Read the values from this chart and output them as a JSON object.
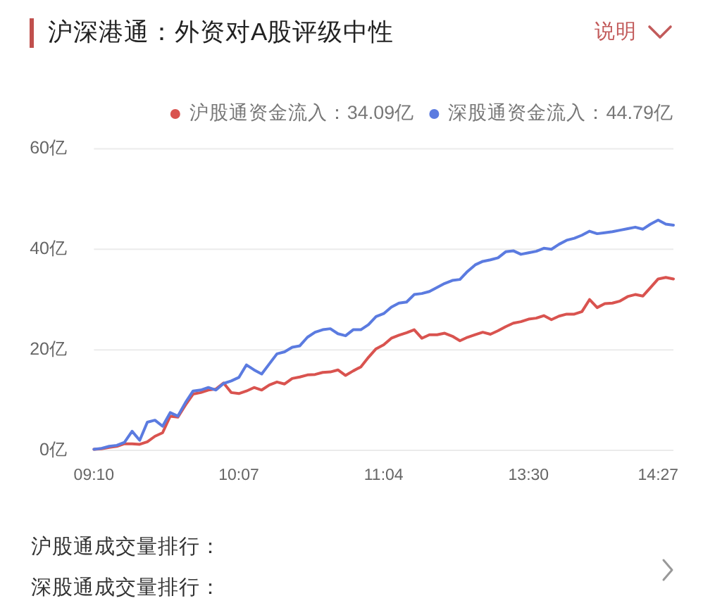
{
  "chart_data": {
    "type": "line",
    "title": "沪深港通：外资对A股评级中性",
    "annotations": [
      "说明",
      "沪股通成交量排行：",
      "深股通成交量排行："
    ],
    "categories": [
      "09:10",
      null,
      null,
      null,
      null,
      null,
      null,
      null,
      null,
      null,
      null,
      null,
      null,
      null,
      null,
      null,
      null,
      null,
      null,
      "10:07",
      null,
      null,
      null,
      null,
      null,
      null,
      null,
      null,
      null,
      null,
      null,
      null,
      null,
      null,
      null,
      null,
      null,
      null,
      "11:04",
      null,
      null,
      null,
      null,
      null,
      null,
      null,
      null,
      null,
      null,
      null,
      null,
      null,
      null,
      null,
      null,
      null,
      null,
      "13:30",
      null,
      null,
      null,
      null,
      null,
      null,
      null,
      null,
      null,
      null,
      null,
      null,
      null,
      null,
      null,
      null,
      "14:27",
      null,
      null
    ],
    "series": [
      {
        "name": "沪股通资金流入：34.09亿",
        "color": "#d9534f",
        "values": [
          0.2,
          0.3,
          0.6,
          0.8,
          1.3,
          1.3,
          1.2,
          1.7,
          2.8,
          3.5,
          6.8,
          6.6,
          9.0,
          11.2,
          11.5,
          12.0,
          12.2,
          13.4,
          11.5,
          11.3,
          11.8,
          12.5,
          12.0,
          13.0,
          13.6,
          13.2,
          14.3,
          14.6,
          15.0,
          15.1,
          15.5,
          15.6,
          16.0,
          14.9,
          15.8,
          16.6,
          18.5,
          20.2,
          21.0,
          22.3,
          22.9,
          23.4,
          24.0,
          22.3,
          23.0,
          23.0,
          23.3,
          22.7,
          21.8,
          22.5,
          23.0,
          23.5,
          23.1,
          23.8,
          24.6,
          25.3,
          25.6,
          26.1,
          26.3,
          26.8,
          26.0,
          26.7,
          27.1,
          27.1,
          27.6,
          30.0,
          28.4,
          29.2,
          29.3,
          29.7,
          30.6,
          31.0,
          30.7,
          32.4,
          34.1,
          34.4,
          34.1
        ]
      },
      {
        "name": "深股通资金流入：44.79亿",
        "color": "#5b7be0",
        "values": [
          0.2,
          0.4,
          0.8,
          1.0,
          1.6,
          3.8,
          2.0,
          5.6,
          6.0,
          4.8,
          7.5,
          6.8,
          9.5,
          11.8,
          12.0,
          12.5,
          12.0,
          13.3,
          13.8,
          14.5,
          17.0,
          16.0,
          15.2,
          17.2,
          19.2,
          19.6,
          20.5,
          20.8,
          22.5,
          23.5,
          24.0,
          24.2,
          23.2,
          22.8,
          24.0,
          24.0,
          25.0,
          26.6,
          27.2,
          28.5,
          29.3,
          29.5,
          31.0,
          31.2,
          31.6,
          32.4,
          33.2,
          33.8,
          34.0,
          35.6,
          36.9,
          37.6,
          37.9,
          38.3,
          39.5,
          39.7,
          39.0,
          39.3,
          39.6,
          40.2,
          40.0,
          41.0,
          41.8,
          42.2,
          42.8,
          43.6,
          43.1,
          43.3,
          43.5,
          43.8,
          44.1,
          44.4,
          44.0,
          45.0,
          45.8,
          45.0,
          44.8
        ]
      }
    ],
    "ylim": [
      0,
      60
    ],
    "yticks": [
      {
        "value": 0,
        "label": "0亿"
      },
      {
        "value": 20,
        "label": "20亿"
      },
      {
        "value": 40,
        "label": "40亿"
      },
      {
        "value": 60,
        "label": "60亿"
      }
    ],
    "grid": "y",
    "legend": "top right",
    "line_style": "solid"
  }
}
